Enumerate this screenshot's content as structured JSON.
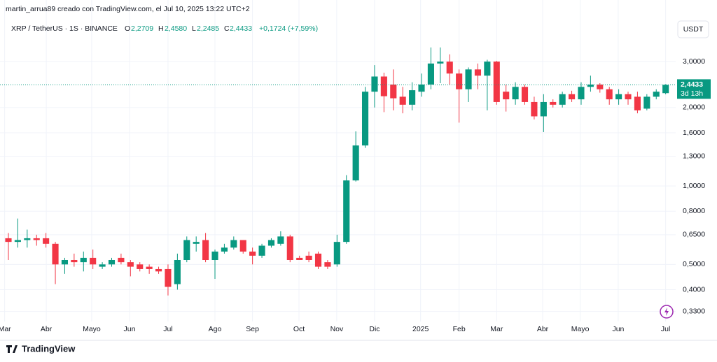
{
  "chart_data": {
    "type": "candlestick",
    "attribution": "martin_arrua89 creado con TradingView.com, el Jul 10, 2025 13:22 UTC+2",
    "symbol": "XRP / TetherUS · 1S · BINANCE",
    "legend": {
      "o": "O",
      "open": "2,2709",
      "h": "H",
      "high": "2,4580",
      "l": "L",
      "low": "2,2485",
      "c": "C",
      "close": "2,4433",
      "change": "+0,1724 (+7,59%)"
    },
    "currency": "USDT",
    "last_label": "2,4433",
    "countdown": "3d 13h",
    "brand": "TradingView",
    "log_scale": true,
    "grid": true,
    "up_color": "#089981",
    "down_color": "#f23645",
    "open": [
      0.63,
      0.61,
      0.62,
      0.63,
      0.63,
      0.6,
      0.5,
      0.52,
      0.51,
      0.53,
      0.49,
      0.5,
      0.53,
      0.51,
      0.5,
      0.49,
      0.48,
      0.48,
      0.42,
      0.52,
      0.6,
      0.62,
      0.52,
      0.56,
      0.58,
      0.62,
      0.56,
      0.54,
      0.59,
      0.6,
      0.64,
      0.53,
      0.54,
      0.55,
      0.51,
      0.5,
      0.61,
      1.05,
      1.43,
      2.3,
      2.63,
      2.45,
      2.2,
      2.05,
      2.3,
      2.45,
      2.95,
      3.0,
      2.7,
      2.35,
      2.8,
      2.65,
      3.0,
      2.3,
      2.15,
      2.4,
      2.1,
      1.85,
      2.1,
      2.05,
      2.25,
      2.15,
      2.4,
      2.45,
      2.35,
      2.15,
      2.25,
      2.2,
      1.98,
      2.2,
      2.2709
    ],
    "high": [
      0.66,
      0.75,
      0.68,
      0.65,
      0.66,
      0.61,
      0.53,
      0.55,
      0.56,
      0.57,
      0.51,
      0.53,
      0.55,
      0.52,
      0.51,
      0.5,
      0.49,
      0.5,
      0.55,
      0.64,
      0.64,
      0.66,
      0.57,
      0.6,
      0.64,
      0.62,
      0.58,
      0.6,
      0.63,
      0.67,
      0.65,
      0.54,
      0.56,
      0.56,
      0.52,
      0.65,
      1.1,
      1.62,
      2.4,
      2.91,
      2.72,
      2.8,
      2.4,
      2.5,
      2.7,
      3.4,
      3.4,
      3.2,
      2.8,
      2.85,
      2.95,
      3.05,
      3.02,
      2.45,
      2.5,
      2.45,
      2.2,
      2.25,
      2.15,
      2.3,
      2.32,
      2.5,
      2.65,
      2.48,
      2.4,
      2.35,
      2.3,
      2.3,
      2.25,
      2.35,
      2.458
    ],
    "low": [
      0.52,
      0.58,
      0.58,
      0.59,
      0.58,
      0.42,
      0.46,
      0.49,
      0.47,
      0.48,
      0.48,
      0.49,
      0.5,
      0.45,
      0.47,
      0.46,
      0.46,
      0.38,
      0.4,
      0.51,
      0.56,
      0.51,
      0.44,
      0.55,
      0.57,
      0.55,
      0.5,
      0.53,
      0.58,
      0.59,
      0.51,
      0.52,
      0.51,
      0.48,
      0.48,
      0.49,
      0.6,
      1.04,
      1.4,
      2.0,
      1.92,
      1.95,
      1.9,
      1.95,
      2.2,
      2.35,
      2.48,
      2.45,
      1.75,
      2.1,
      2.35,
      1.95,
      2.05,
      1.93,
      2.05,
      2.05,
      1.8,
      1.61,
      2.0,
      2.0,
      2.1,
      2.05,
      2.3,
      2.28,
      2.05,
      2.05,
      2.05,
      1.9,
      1.95,
      2.15,
      2.2485
    ],
    "close": [
      0.61,
      0.62,
      0.63,
      0.62,
      0.6,
      0.5,
      0.52,
      0.51,
      0.53,
      0.5,
      0.5,
      0.52,
      0.51,
      0.49,
      0.48,
      0.48,
      0.47,
      0.41,
      0.52,
      0.62,
      0.61,
      0.52,
      0.56,
      0.58,
      0.62,
      0.56,
      0.54,
      0.59,
      0.62,
      0.64,
      0.52,
      0.52,
      0.52,
      0.49,
      0.49,
      0.61,
      1.05,
      1.43,
      2.3,
      2.63,
      2.21,
      2.17,
      2.05,
      2.33,
      2.45,
      2.95,
      3.0,
      2.7,
      2.35,
      2.8,
      2.65,
      3.0,
      2.1,
      2.15,
      2.4,
      2.1,
      1.85,
      2.1,
      2.05,
      2.25,
      2.15,
      2.4,
      2.45,
      2.35,
      2.15,
      2.25,
      2.15,
      1.95,
      2.2,
      2.3,
      2.4433
    ],
    "xlim": [
      -0.895,
      71.07
    ],
    "xticks": [
      {
        "value": -0.4,
        "label": "Mar"
      },
      {
        "value": 4.03,
        "label": "Abr"
      },
      {
        "value": 8.87,
        "label": "Mayo"
      },
      {
        "value": 12.9,
        "label": "Jun"
      },
      {
        "value": 17,
        "label": "Jul"
      },
      {
        "value": 22,
        "label": "Ago"
      },
      {
        "value": 26,
        "label": "Sep"
      },
      {
        "value": 30.95,
        "label": "Oct"
      },
      {
        "value": 34.97,
        "label": "Nov"
      },
      {
        "value": 39,
        "label": "Dic"
      },
      {
        "value": 43.9,
        "label": "2025"
      },
      {
        "value": 48,
        "label": "Feb"
      },
      {
        "value": 52,
        "label": "Mar"
      },
      {
        "value": 56.9,
        "label": "Abr"
      },
      {
        "value": 60.9,
        "label": "Mayo"
      },
      {
        "value": 64.95,
        "label": "Jun"
      },
      {
        "value": 70,
        "label": "Jul"
      }
    ],
    "ylim": [
      0.302,
      4.35
    ],
    "yticks": [
      {
        "value": 0.33,
        "label": "0,3300"
      },
      {
        "value": 0.4,
        "label": "0,4000"
      },
      {
        "value": 0.5,
        "label": "0,5000"
      },
      {
        "value": 0.65,
        "label": "0,6500"
      },
      {
        "value": 0.8,
        "label": "0,8000"
      },
      {
        "value": 1,
        "label": "1,0000"
      },
      {
        "value": 1.3,
        "label": "1,3000"
      },
      {
        "value": 1.6,
        "label": "1,6000"
      },
      {
        "value": 2,
        "label": "2,0000"
      },
      {
        "value": 3,
        "label": "3,0000"
      }
    ]
  }
}
